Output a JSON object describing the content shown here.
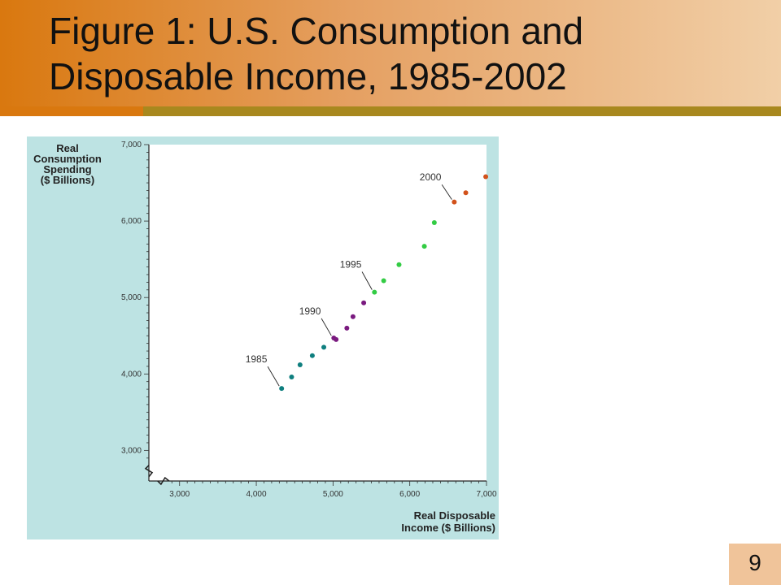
{
  "slide": {
    "title_line1": "Figure 1:  U.S. Consumption and",
    "title_line2": "Disposable Income, 1985-2002",
    "page_number": "9"
  },
  "colors": {
    "title_gradient_start": "#d9780f",
    "title_gradient_end": "#f1cfa7",
    "title_rule": "#a8881e",
    "chart_frame": "#bde3e3",
    "series_1985_1989": "#0f7f7f",
    "series_1990_1994": "#7a1a7f",
    "series_1995_1999": "#33cc44",
    "series_2000_2002": "#d2521b"
  },
  "chart_data": {
    "type": "scatter",
    "title": "",
    "ylabel_lines": [
      "Real",
      "Consumption",
      "Spending",
      "($ Billions)"
    ],
    "xlabel_lines": [
      "Real Disposable",
      "Income ($ Billions)"
    ],
    "xlim": [
      2600,
      7000
    ],
    "ylim": [
      2600,
      7000
    ],
    "x_ticks": [
      3000,
      4000,
      5000,
      6000,
      7000
    ],
    "x_tick_labels": [
      "3,000",
      "4,000",
      "5,000",
      "6,000",
      "7,000"
    ],
    "y_ticks": [
      3000,
      4000,
      5000,
      6000,
      7000
    ],
    "y_tick_labels": [
      "3,000",
      "4,000",
      "5,000",
      "6,000",
      "7,000"
    ],
    "axis_breaks": true,
    "grid": false,
    "series": [
      {
        "color": "#0f7f7f",
        "points": [
          [
            4330,
            3810
          ],
          [
            4460,
            3960
          ],
          [
            4570,
            4120
          ],
          [
            4730,
            4240
          ],
          [
            4880,
            4350
          ]
        ]
      },
      {
        "color": "#7a1a7f",
        "points": [
          [
            5010,
            4470
          ],
          [
            5040,
            4450
          ],
          [
            5180,
            4600
          ],
          [
            5260,
            4750
          ],
          [
            5400,
            4930
          ]
        ]
      },
      {
        "color": "#33cc44",
        "points": [
          [
            5540,
            5070
          ],
          [
            5660,
            5220
          ],
          [
            5860,
            5430
          ],
          [
            6190,
            5670
          ],
          [
            6320,
            5980
          ]
        ]
      },
      {
        "color": "#d2521b",
        "points": [
          [
            6580,
            6250
          ],
          [
            6730,
            6370
          ],
          [
            6990,
            6580
          ]
        ]
      }
    ],
    "annotations": [
      {
        "text": "1985",
        "point": [
          4330,
          3810
        ],
        "label_at": [
          4000,
          4150
        ]
      },
      {
        "text": "1990",
        "point": [
          5010,
          4470
        ],
        "label_at": [
          4700,
          4780
        ]
      },
      {
        "text": "1995",
        "point": [
          5540,
          5070
        ],
        "label_at": [
          5230,
          5390
        ]
      },
      {
        "text": "2000",
        "point": [
          6580,
          6250
        ],
        "label_at": [
          6270,
          6530
        ]
      }
    ]
  }
}
